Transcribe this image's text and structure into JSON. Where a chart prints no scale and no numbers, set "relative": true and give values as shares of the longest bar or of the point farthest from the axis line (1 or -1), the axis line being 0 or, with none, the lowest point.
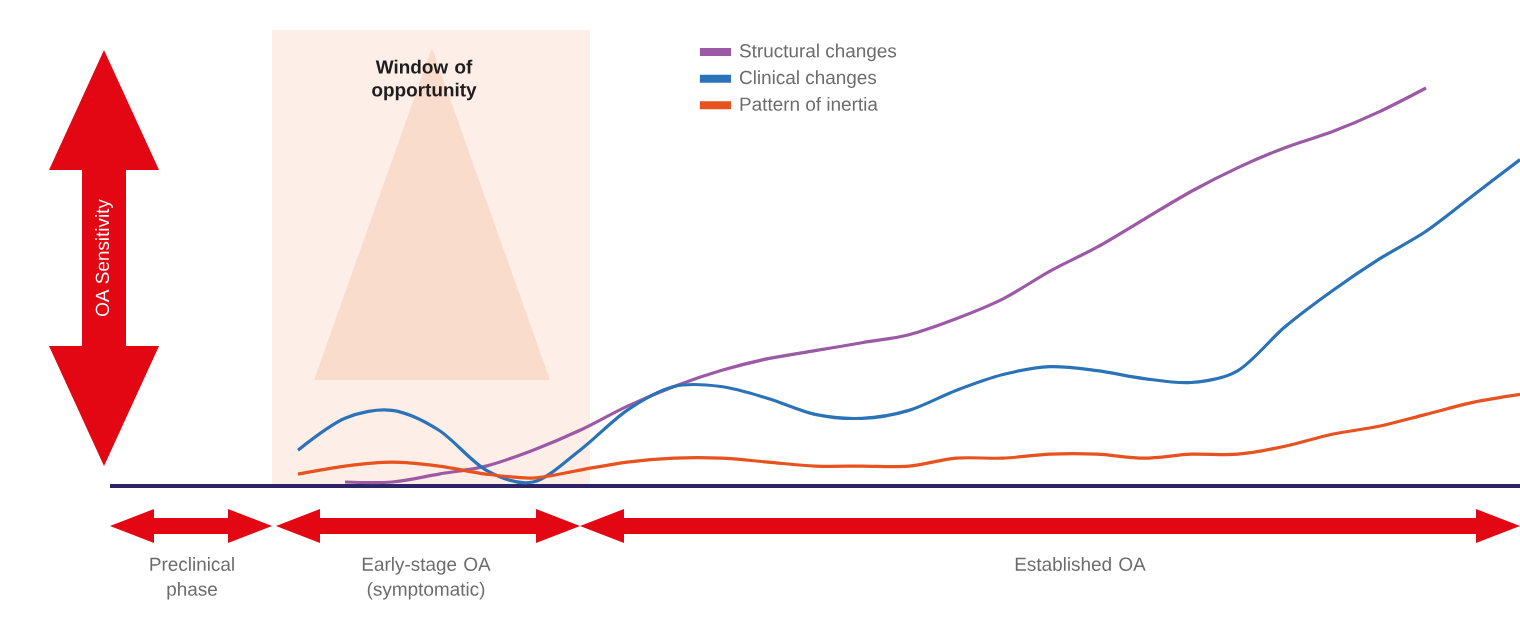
{
  "chart_data": {
    "type": "line",
    "relative": true,
    "ylabel": "OA Sensitivity",
    "legend": "top",
    "categories": [
      null,
      null,
      null,
      null,
      null,
      null,
      null,
      null,
      null,
      null,
      null,
      null,
      null,
      null,
      null,
      null,
      null,
      null,
      null,
      null,
      null,
      null,
      null,
      null,
      null,
      null,
      null,
      null,
      null,
      null,
      null
    ],
    "series": [
      {
        "name": "Structural changes",
        "color": "#9b59a6",
        "values": [
          null,
          null,
          null,
          null,
          null,
          0.01,
          0.01,
          0.03,
          0.05,
          0.09,
          0.14,
          0.2,
          0.25,
          0.29,
          0.32,
          0.34,
          0.36,
          0.38,
          0.42,
          0.47,
          0.54,
          0.6,
          0.67,
          0.74,
          0.8,
          0.85,
          0.89,
          0.94,
          1,
          null,
          null
        ]
      },
      {
        "name": "Clinical changes",
        "color": "#2a73b8",
        "values": [
          null,
          null,
          null,
          null,
          0.09,
          0.17,
          0.19,
          0.14,
          0.04,
          0.01,
          0.09,
          0.19,
          0.25,
          0.25,
          0.22,
          0.18,
          0.17,
          0.19,
          0.24,
          0.28,
          0.3,
          0.29,
          0.27,
          0.26,
          0.29,
          0.4,
          0.49,
          0.57,
          0.64,
          0.73,
          0.82
        ]
      },
      {
        "name": "Pattern of inertia",
        "color": "#e8521e",
        "values": [
          null,
          null,
          null,
          null,
          0.03,
          0.05,
          0.06,
          0.05,
          0.03,
          0.02,
          0.04,
          0.06,
          0.07,
          0.07,
          0.06,
          0.05,
          0.05,
          0.05,
          0.07,
          0.07,
          0.08,
          0.08,
          0.07,
          0.08,
          0.08,
          0.1,
          0.13,
          0.15,
          0.18,
          0.21,
          0.23
        ]
      }
    ],
    "annotations": [
      "Window of opportunity",
      "Preclinical phase",
      "Early-stage OA (symptomatic)",
      "Established OA"
    ],
    "line_style": "solid"
  }
}
